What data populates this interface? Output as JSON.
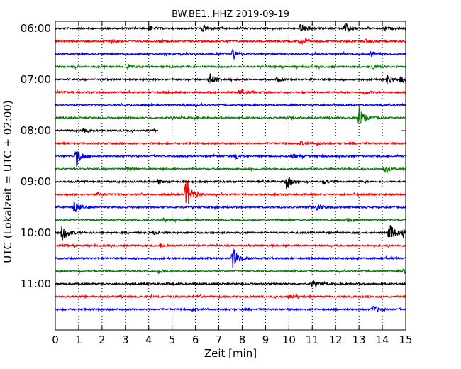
{
  "chart_data": {
    "type": "line",
    "title": "BW.BE1..HHZ 2019-09-19",
    "xlabel": "Zeit  [min]",
    "ylabel": "UTC (Lokalzeit = UTC + 02:00)",
    "xlim": [
      0,
      15
    ],
    "x_ticks": [
      "0",
      "1",
      "2",
      "3",
      "4",
      "5",
      "6",
      "7",
      "8",
      "9",
      "10",
      "11",
      "12",
      "13",
      "14",
      "15"
    ],
    "hour_labels": [
      {
        "label": "06:00",
        "row": 0
      },
      {
        "label": "07:00",
        "row": 4
      },
      {
        "label": "08:00",
        "row": 8
      },
      {
        "label": "09:00",
        "row": 12
      },
      {
        "label": "10:00",
        "row": 16
      },
      {
        "label": "11:00",
        "row": 20
      }
    ],
    "row_interval_minutes": 15,
    "grid": "vertical dotted",
    "colors": [
      "#000000",
      "#ff0000",
      "#0000ff",
      "#008000"
    ],
    "series": [
      {
        "row": 0,
        "end": 15,
        "events": [
          [
            4,
            0.4
          ],
          [
            6.3,
            0.5
          ],
          [
            10.5,
            0.7
          ],
          [
            12.4,
            0.9
          ],
          [
            14.1,
            0.3
          ]
        ]
      },
      {
        "row": 1,
        "end": 15,
        "events": [
          [
            2.4,
            0.3
          ],
          [
            10.5,
            0.5
          ],
          [
            13.3,
            0.3
          ]
        ]
      },
      {
        "row": 2,
        "end": 15,
        "events": [
          [
            4.6,
            0.3
          ],
          [
            7.6,
            0.8
          ],
          [
            13.5,
            0.4
          ]
        ]
      },
      {
        "row": 3,
        "end": 15,
        "events": [
          [
            3.1,
            0.3
          ],
          [
            13.6,
            0.5
          ]
        ]
      },
      {
        "row": 4,
        "end": 15,
        "events": [
          [
            6.6,
            1.0
          ],
          [
            9.5,
            0.3
          ],
          [
            14.2,
            0.8
          ],
          [
            14.8,
            0.5
          ]
        ]
      },
      {
        "row": 5,
        "end": 15,
        "events": [
          [
            7.9,
            0.4
          ],
          [
            13.2,
            0.3
          ]
        ]
      },
      {
        "row": 6,
        "end": 15,
        "events": [
          [
            5.5,
            0.2
          ]
        ]
      },
      {
        "row": 7,
        "end": 15,
        "events": [
          [
            13.0,
            1.6
          ]
        ]
      },
      {
        "row": 8,
        "end": 4.4,
        "events": [
          [
            1.2,
            0.4
          ]
        ]
      },
      {
        "row": 9,
        "end": 15,
        "events": [
          [
            10.5,
            0.3
          ],
          [
            11.2,
            0.3
          ]
        ]
      },
      {
        "row": 10,
        "end": 15,
        "events": [
          [
            0.9,
            1.5
          ],
          [
            7.7,
            0.5
          ],
          [
            10.2,
            0.3
          ]
        ]
      },
      {
        "row": 11,
        "end": 15,
        "events": [
          [
            14.1,
            0.6
          ],
          [
            3.1,
            0.2
          ]
        ]
      },
      {
        "row": 12,
        "end": 15,
        "events": [
          [
            4.4,
            0.4
          ],
          [
            9.9,
            1.1
          ],
          [
            11.5,
            0.3
          ]
        ]
      },
      {
        "row": 13,
        "end": 15,
        "events": [
          [
            5.6,
            2.7
          ],
          [
            1.8,
            0.2
          ]
        ]
      },
      {
        "row": 14,
        "end": 15,
        "events": [
          [
            0.8,
            1.0
          ],
          [
            11.2,
            0.7
          ]
        ]
      },
      {
        "row": 15,
        "end": 15,
        "events": [
          [
            4.6,
            0.3
          ],
          [
            12.5,
            0.3
          ]
        ]
      },
      {
        "row": 16,
        "end": 15,
        "events": [
          [
            0.3,
            1.4
          ],
          [
            14.3,
            1.8
          ],
          [
            14.9,
            0.7
          ],
          [
            4.2,
            0.3
          ]
        ]
      },
      {
        "row": 17,
        "end": 15,
        "events": [
          [
            4.5,
            0.3
          ]
        ]
      },
      {
        "row": 18,
        "end": 15,
        "events": [
          [
            7.6,
            1.6
          ]
        ]
      },
      {
        "row": 19,
        "end": 15,
        "events": [
          [
            4.4,
            0.4
          ],
          [
            14.9,
            0.3
          ]
        ]
      },
      {
        "row": 20,
        "end": 15,
        "events": [
          [
            11.0,
            0.5
          ],
          [
            4.8,
            0.2
          ]
        ]
      },
      {
        "row": 21,
        "end": 15,
        "events": [
          [
            6.1,
            0.3
          ],
          [
            10.0,
            0.3
          ]
        ]
      },
      {
        "row": 22,
        "end": 15,
        "events": [
          [
            13.6,
            0.7
          ],
          [
            5.8,
            0.2
          ]
        ]
      }
    ]
  }
}
